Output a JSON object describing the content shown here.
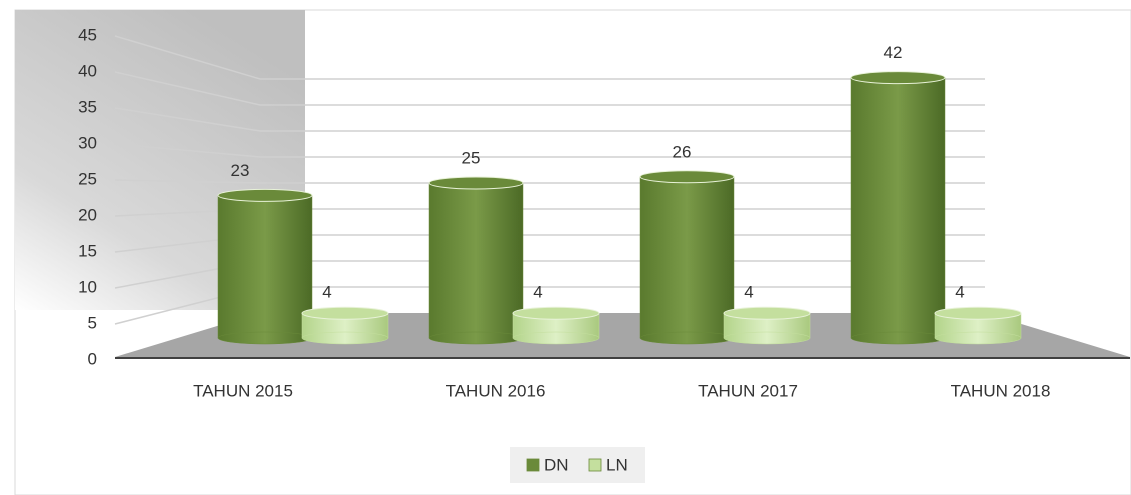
{
  "chart_data": {
    "type": "bar3d",
    "categories": [
      "TAHUN 2015",
      "TAHUN 2016",
      "TAHUN 2017",
      "TAHUN 2018"
    ],
    "series": [
      {
        "name": "DN",
        "color": "#6a8a3a",
        "values": [
          23,
          25,
          26,
          42
        ]
      },
      {
        "name": "LN",
        "color": "#c4df9e",
        "values": [
          4,
          4,
          4,
          4
        ]
      }
    ],
    "ylim": [
      0,
      45
    ],
    "yticks": [
      0,
      5,
      10,
      15,
      20,
      25,
      30,
      35,
      40,
      45
    ],
    "grid": true,
    "legend": "bottom"
  }
}
